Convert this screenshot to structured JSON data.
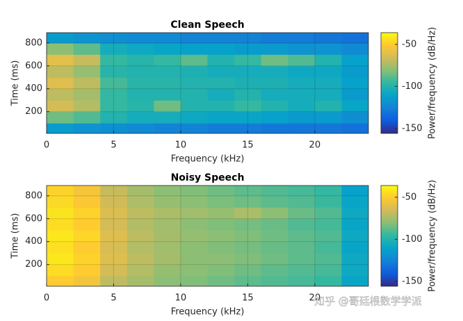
{
  "chart_data": [
    {
      "type": "heatmap",
      "title": "Clean Speech",
      "x_label": "Frequency (kHz)",
      "y_label": "Time (ms)",
      "colorbar_label": "Power/frequency (dB/Hz)",
      "x": [
        1,
        3,
        5,
        7,
        9,
        11,
        13,
        15,
        17,
        19,
        21,
        23
      ],
      "y": [
        50,
        150,
        250,
        350,
        450,
        550,
        650,
        750,
        850
      ],
      "z": [
        [
          -115,
          -118,
          -120,
          -122,
          -125,
          -125,
          -128,
          -128,
          -130,
          -130,
          -130,
          -132
        ],
        [
          -85,
          -90,
          -100,
          -105,
          -105,
          -108,
          -110,
          -110,
          -112,
          -115,
          -115,
          -120
        ],
        [
          -65,
          -72,
          -95,
          -98,
          -85,
          -100,
          -100,
          -95,
          -100,
          -105,
          -100,
          -110
        ],
        [
          -70,
          -75,
          -95,
          -100,
          -100,
          -100,
          -105,
          -100,
          -105,
          -105,
          -105,
          -115
        ],
        [
          -62,
          -70,
          -92,
          -98,
          -98,
          -100,
          -100,
          -102,
          -102,
          -105,
          -105,
          -112
        ],
        [
          -70,
          -78,
          -98,
          -100,
          -100,
          -102,
          -105,
          -105,
          -105,
          -108,
          -108,
          -115
        ],
        [
          -60,
          -68,
          -95,
          -98,
          -95,
          -88,
          -100,
          -95,
          -85,
          -90,
          -100,
          -112
        ],
        [
          -80,
          -88,
          -105,
          -108,
          -110,
          -112,
          -112,
          -115,
          -115,
          -118,
          -118,
          -122
        ],
        [
          -115,
          -118,
          -120,
          -122,
          -122,
          -125,
          -125,
          -125,
          -128,
          -128,
          -130,
          -132
        ]
      ],
      "xlim": [
        0,
        24
      ],
      "ylim": [
        10,
        890
      ],
      "xticks": [
        0,
        5,
        10,
        15,
        20
      ],
      "yticks": [
        200,
        400,
        600,
        800
      ],
      "clim": [
        -156,
        -36
      ],
      "cticks": [
        -150,
        -100,
        -50
      ],
      "grid": true,
      "colormap": [
        "#352a87",
        "#0f5cdd",
        "#1481d6",
        "#06a4ca",
        "#2eb7a4",
        "#87bf77",
        "#d1bb59",
        "#fec832",
        "#f9fb0e"
      ]
    },
    {
      "type": "heatmap",
      "title": "Noisy Speech",
      "x_label": "Frequency (kHz)",
      "y_label": "Time (ms)",
      "colorbar_label": "Power/frequency (dB/Hz)",
      "x": [
        1,
        3,
        5,
        7,
        9,
        11,
        13,
        15,
        17,
        19,
        21,
        23
      ],
      "y": [
        50,
        150,
        250,
        350,
        450,
        550,
        650,
        750,
        850
      ],
      "z": [
        [
          -50,
          -55,
          -70,
          -75,
          -80,
          -82,
          -85,
          -88,
          -90,
          -92,
          -95,
          -110
        ],
        [
          -45,
          -50,
          -65,
          -72,
          -78,
          -80,
          -82,
          -85,
          -88,
          -90,
          -92,
          -108
        ],
        [
          -42,
          -48,
          -62,
          -70,
          -75,
          -80,
          -80,
          -82,
          -85,
          -88,
          -90,
          -108
        ],
        [
          -44,
          -50,
          -64,
          -72,
          -76,
          -80,
          -82,
          -84,
          -86,
          -88,
          -92,
          -110
        ],
        [
          -42,
          -47,
          -62,
          -70,
          -75,
          -78,
          -80,
          -82,
          -85,
          -88,
          -90,
          -108
        ],
        [
          -45,
          -50,
          -65,
          -72,
          -76,
          -80,
          -82,
          -84,
          -86,
          -90,
          -92,
          -110
        ],
        [
          -43,
          -48,
          -63,
          -70,
          -74,
          -76,
          -78,
          -74,
          -80,
          -86,
          -90,
          -108
        ],
        [
          -46,
          -52,
          -66,
          -73,
          -78,
          -80,
          -83,
          -85,
          -88,
          -90,
          -94,
          -110
        ],
        [
          -48,
          -54,
          -68,
          -75,
          -80,
          -82,
          -85,
          -88,
          -90,
          -92,
          -95,
          -112
        ]
      ],
      "xlim": [
        0,
        24
      ],
      "ylim": [
        10,
        890
      ],
      "xticks": [
        0,
        5,
        10,
        15,
        20
      ],
      "yticks": [
        200,
        400,
        600,
        800
      ],
      "clim": [
        -156,
        -36
      ],
      "cticks": [
        -150,
        -100,
        -50
      ],
      "grid": true,
      "colormap": [
        "#352a87",
        "#0f5cdd",
        "#1481d6",
        "#06a4ca",
        "#2eb7a4",
        "#87bf77",
        "#d1bb59",
        "#fec832",
        "#f9fb0e"
      ]
    }
  ],
  "watermark": "知乎 @哥廷根数学学派"
}
